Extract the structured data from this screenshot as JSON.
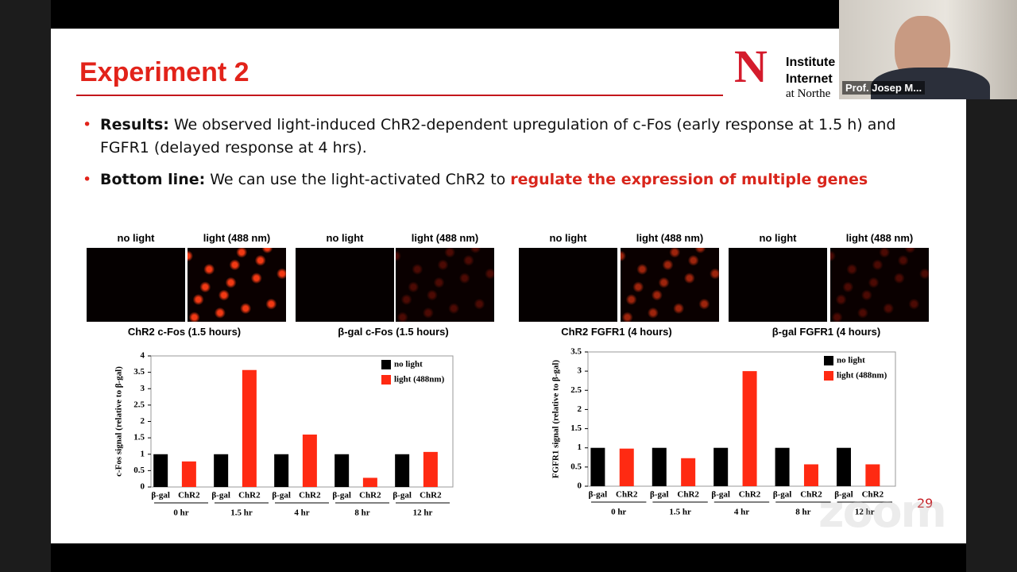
{
  "slide": {
    "title": "Experiment 2",
    "logo": [
      "Institute",
      "Internet",
      "at Northe"
    ],
    "bullets": [
      {
        "label": "Results:",
        "text": "We observed light-induced ChR2-dependent upregulation of c-Fos (early response at 1.5 h) and FGFR1 (delayed response at 4 hrs)."
      },
      {
        "label": "Bottom line:",
        "text": "We can use the light-activated ChR2 to",
        "highlight": "regulate the expression of multiple genes"
      }
    ],
    "panels": [
      {
        "left": "no light",
        "right": "light (488 nm)",
        "caption": "ChR2 c-Fos (1.5 hours)"
      },
      {
        "left": "no light",
        "right": "light (488 nm)",
        "caption": "β-gal c-Fos (1.5 hours)"
      },
      {
        "left": "no light",
        "right": "light (488 nm)",
        "caption": "ChR2 FGFR1 (4 hours)"
      },
      {
        "left": "no light",
        "right": "light (488 nm)",
        "caption": "β-gal FGFR1 (4 hours)"
      }
    ],
    "page_number": "29"
  },
  "video": {
    "name": "Prof. Josep M..."
  },
  "watermark": "zoom",
  "chart_data": [
    {
      "type": "bar",
      "y_label": "c-Fos signal (relative to β-gal)",
      "categories": [
        "β-gal",
        "ChR2",
        "β-gal",
        "ChR2",
        "β-gal",
        "ChR2",
        "β-gal",
        "ChR2",
        "β-gal",
        "ChR2"
      ],
      "groups": [
        "0 hr",
        "1.5 hr",
        "4 hr",
        "8 hr",
        "12 hr"
      ],
      "series": [
        {
          "name": "no light",
          "color": "#000000",
          "values": [
            1,
            null,
            1,
            null,
            1,
            null,
            1,
            null,
            1,
            null
          ]
        },
        {
          "name": "light (488nm)",
          "color": "#ff2a12",
          "values": [
            null,
            0.78,
            null,
            3.57,
            null,
            1.6,
            null,
            0.28,
            null,
            1.07
          ]
        }
      ],
      "ylim": [
        0,
        4
      ],
      "yticks": [
        0,
        0.5,
        1,
        1.5,
        2,
        2.5,
        3,
        3.5,
        4
      ],
      "legend": "upper right"
    },
    {
      "type": "bar",
      "y_label": "FGFR1 signal (relative to β-gal)",
      "categories": [
        "β-gal",
        "ChR2",
        "β-gal",
        "ChR2",
        "β-gal",
        "ChR2",
        "β-gal",
        "ChR2",
        "β-gal",
        "ChR2"
      ],
      "groups": [
        "0 hr",
        "1.5 hr",
        "4 hr",
        "8 hr",
        "12 hr"
      ],
      "series": [
        {
          "name": "no light",
          "color": "#000000",
          "values": [
            1,
            null,
            1,
            null,
            1,
            null,
            1,
            null,
            1,
            null
          ]
        },
        {
          "name": "light (488nm)",
          "color": "#ff2a12",
          "values": [
            null,
            0.98,
            null,
            0.73,
            null,
            3.0,
            null,
            0.57,
            null,
            0.57
          ]
        }
      ],
      "ylim": [
        0,
        3.5
      ],
      "yticks": [
        0,
        0.5,
        1,
        1.5,
        2,
        2.5,
        3,
        3.5
      ],
      "legend": "upper right"
    }
  ]
}
